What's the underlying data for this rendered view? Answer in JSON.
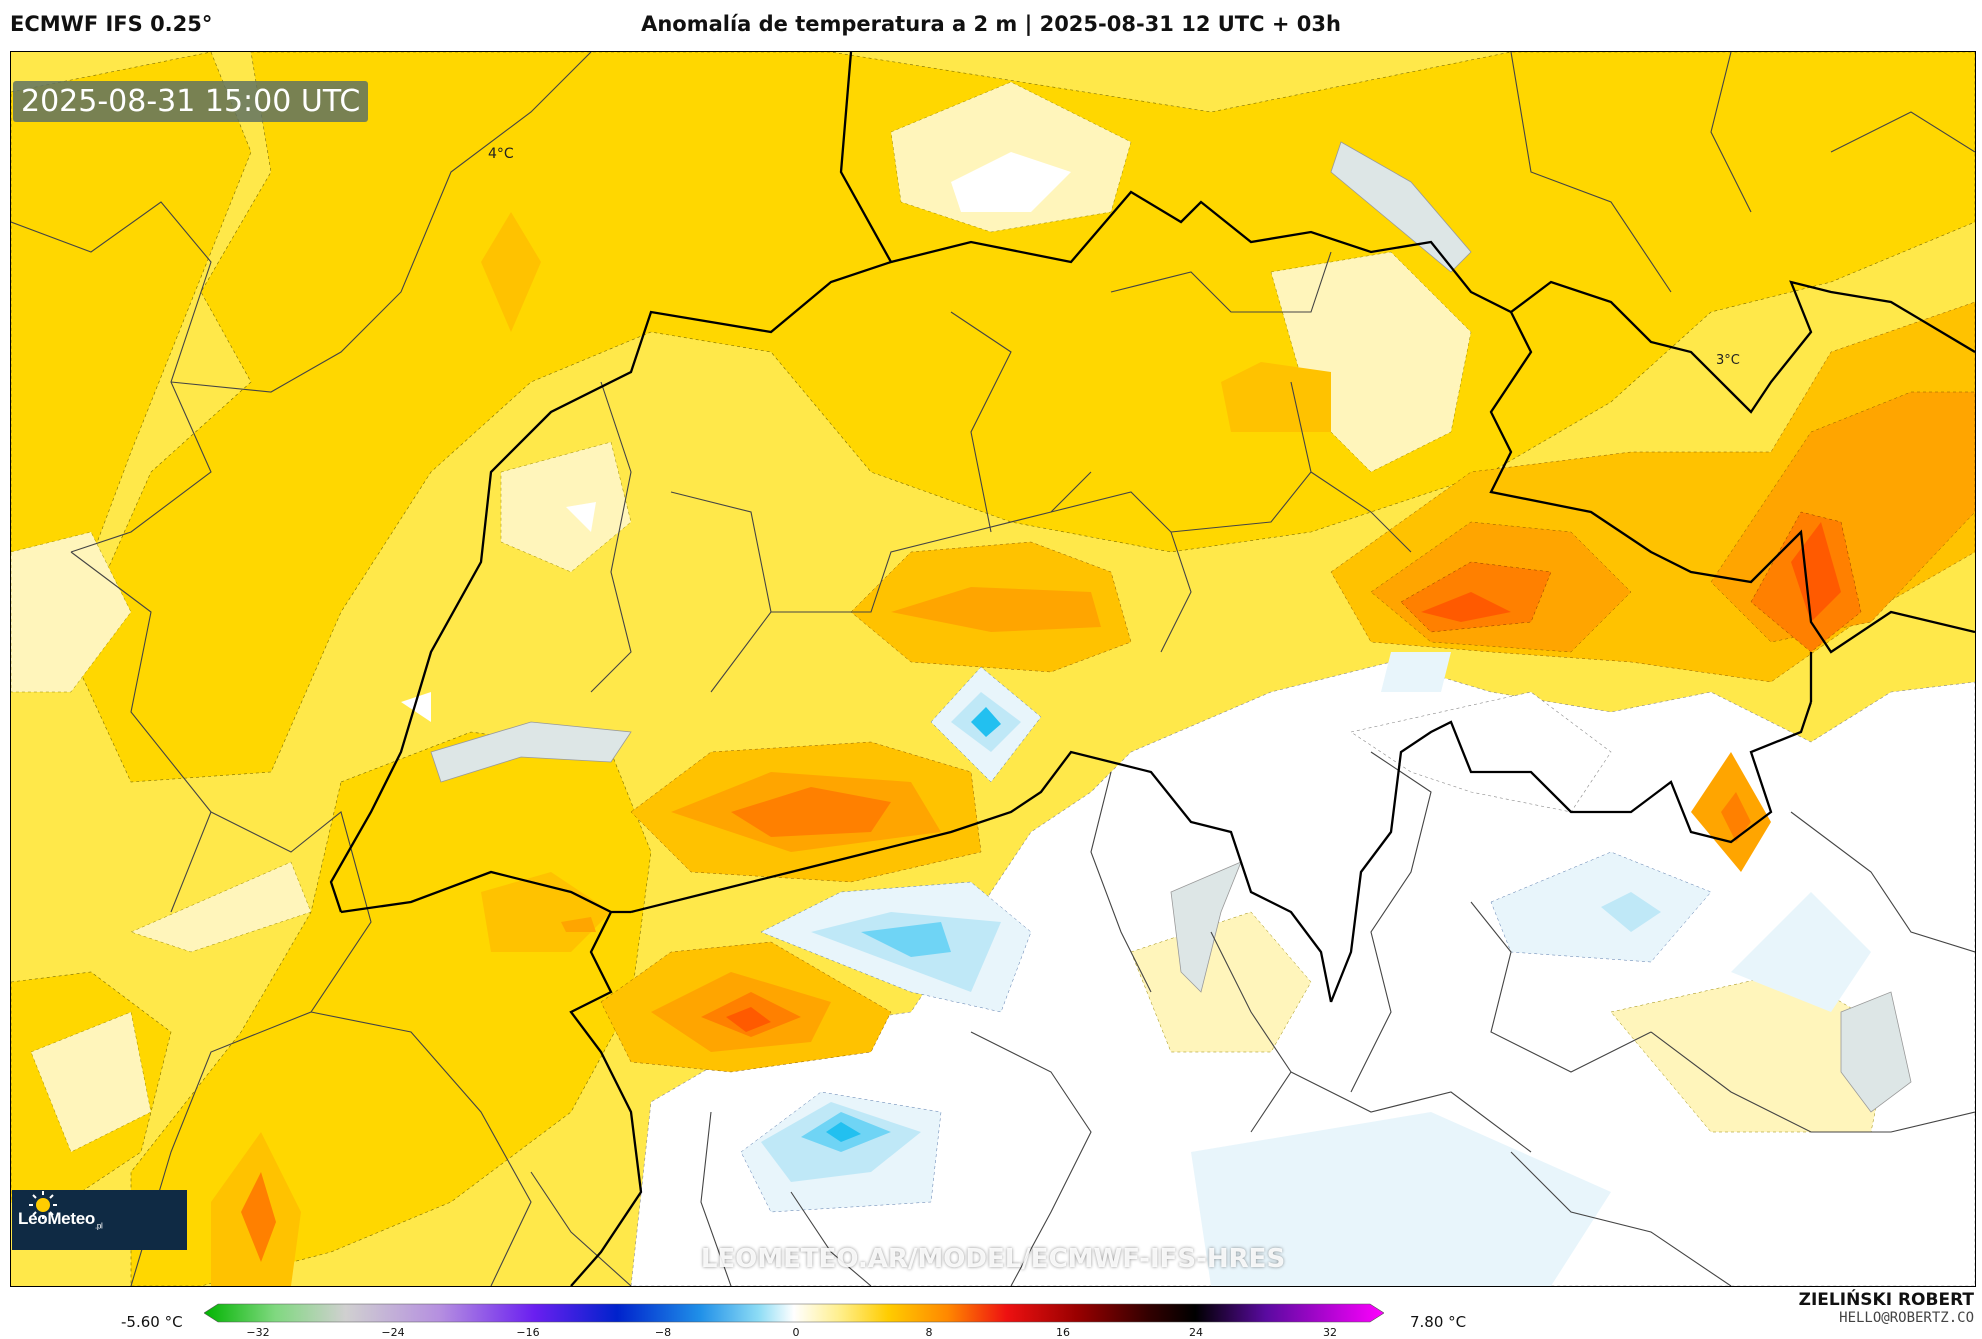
{
  "header": {
    "model": "ECMWF IFS 0.25°",
    "title": "Anomalía de temperatura a 2 m | 2025-08-31 12 UTC + 03h"
  },
  "map": {
    "valid_time": "2025-08-31 15:00 UTC",
    "contour_labels": [
      "4°C",
      "3°C"
    ],
    "watermark": "LEOMETEO.AR/MODEL/ECMWF-IFS-HRES",
    "logo": {
      "text": "LeoMeteo",
      "suffix": ".pl"
    }
  },
  "legend": {
    "min_label": "-5.60 °C",
    "max_label": "7.80 °C",
    "ticks": [
      "−32",
      "−24",
      "−16",
      "−8",
      "0",
      "8",
      "16",
      "24",
      "32"
    ],
    "range": [
      -32,
      32
    ]
  },
  "footer": {
    "author": "ZIELIŃSKI ROBERT",
    "email": "HELLO@ROBERTZ.CO"
  },
  "colors": {
    "anomaly_0_1": "#fff5bb",
    "anomaly_1_2": "#ffe84a",
    "anomaly_2_3": "#ffd700",
    "anomaly_3_4": "#ffc200",
    "anomaly_4_5": "#ffa500",
    "anomaly_5_6": "#ff8000",
    "anomaly_6_7": "#ff5a00",
    "anomaly_neg_1": "#e8f5fb",
    "anomaly_neg_2": "#bfe8f7",
    "anomaly_neg_3": "#6fd4f5",
    "anomaly_neg_4": "#22c0f0",
    "border": "#000000",
    "region_border": "#444444"
  }
}
